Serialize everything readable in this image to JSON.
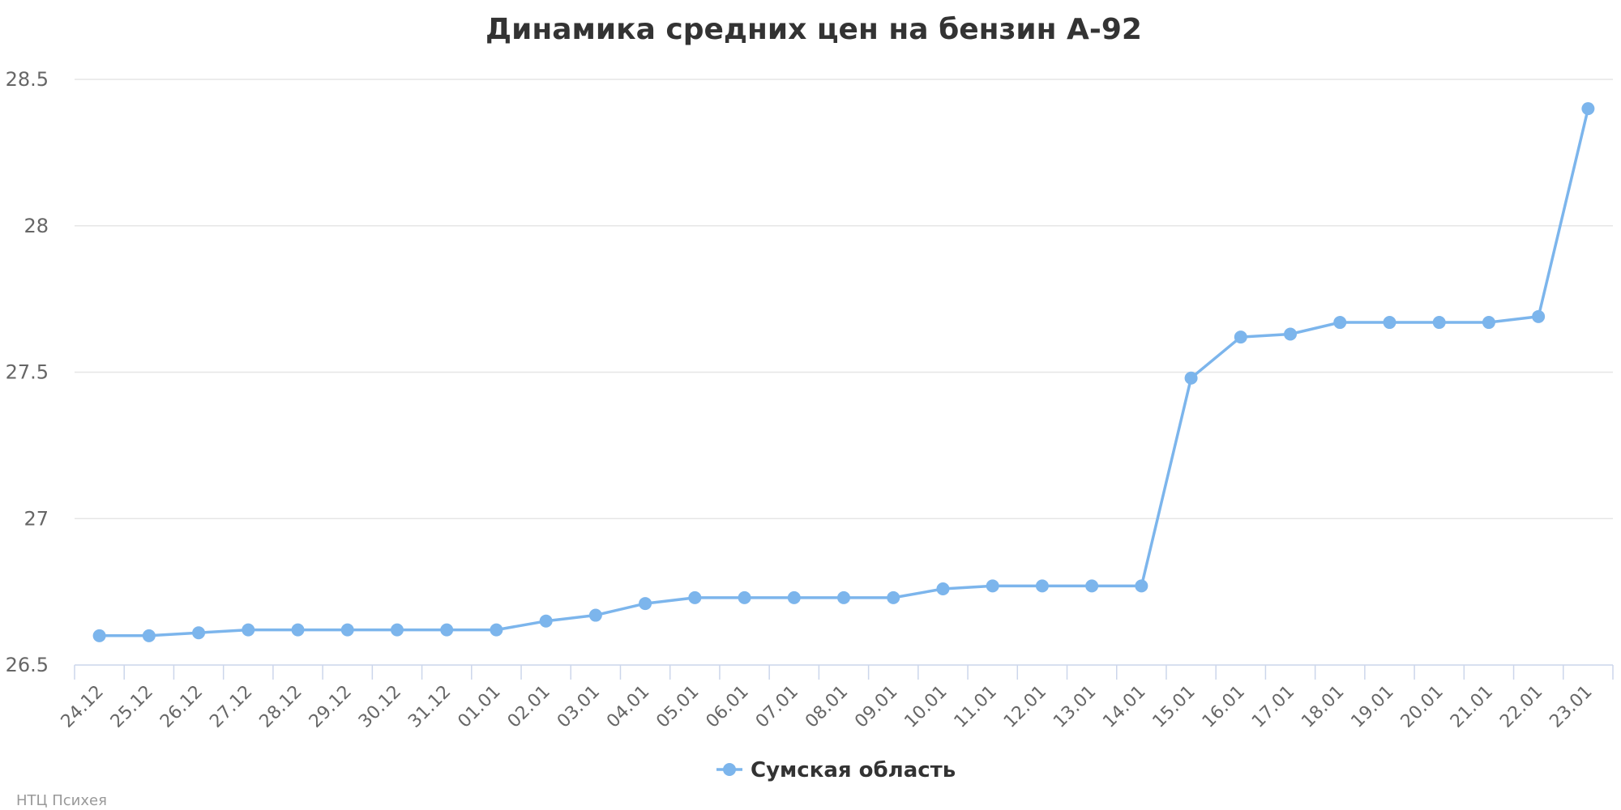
{
  "chart_data": {
    "type": "line",
    "title": "Динамика средних цен на бензин А-92",
    "xlabel": "",
    "ylabel": "",
    "categories": [
      "24.12",
      "25.12",
      "26.12",
      "27.12",
      "28.12",
      "29.12",
      "30.12",
      "31.12",
      "01.01",
      "02.01",
      "03.01",
      "04.01",
      "05.01",
      "06.01",
      "07.01",
      "08.01",
      "09.01",
      "10.01",
      "11.01",
      "12.01",
      "13.01",
      "14.01",
      "15.01",
      "16.01",
      "17.01",
      "18.01",
      "19.01",
      "20.01",
      "21.01",
      "22.01",
      "23.01"
    ],
    "series": [
      {
        "name": "Сумская область",
        "values": [
          26.6,
          26.6,
          26.61,
          26.62,
          26.62,
          26.62,
          26.62,
          26.62,
          26.62,
          26.65,
          26.67,
          26.71,
          26.73,
          26.73,
          26.73,
          26.73,
          26.73,
          26.76,
          26.77,
          26.77,
          26.77,
          26.77,
          27.48,
          27.62,
          27.63,
          27.67,
          27.67,
          27.67,
          27.67,
          27.69,
          28.4
        ],
        "color": "#7cb5ec"
      }
    ],
    "ylim": [
      26.5,
      28.5
    ],
    "yticks": [
      "26.5",
      "27",
      "27.5",
      "28",
      "28.5"
    ],
    "grid": true,
    "legend_position": "bottom-center"
  },
  "credits": "НТЦ Психея"
}
